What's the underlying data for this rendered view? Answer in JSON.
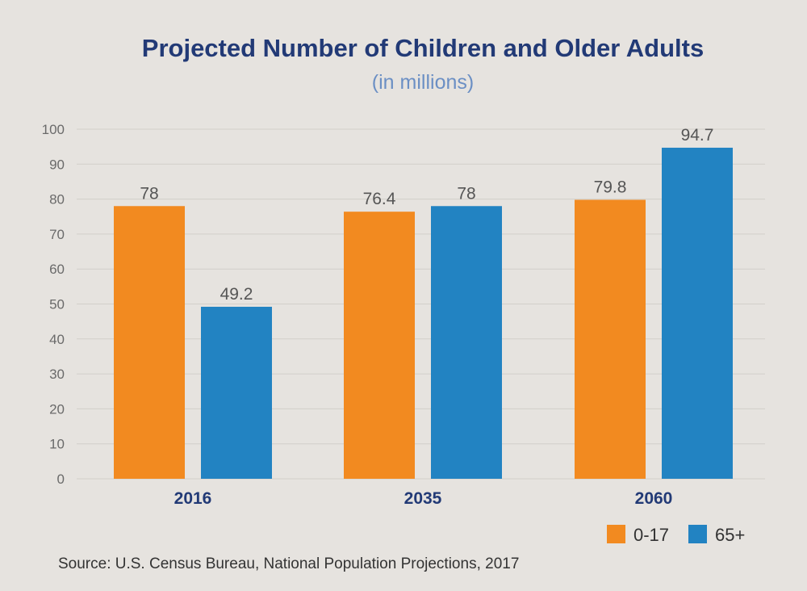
{
  "chart_data": {
    "type": "bar",
    "title": "Projected Number of Children and Older Adults",
    "subtitle": "(in millions)",
    "categories": [
      "2016",
      "2035",
      "2060"
    ],
    "series": [
      {
        "name": "0-17",
        "values": [
          78,
          76.4,
          79.8
        ],
        "labels": [
          "78",
          "76.4",
          "79.8"
        ],
        "color": "#f28a20"
      },
      {
        "name": "65+",
        "values": [
          49.2,
          78,
          94.7
        ],
        "labels": [
          "49.2",
          "78",
          "94.7"
        ],
        "color": "#2283c2"
      }
    ],
    "ylim": [
      0,
      100
    ],
    "yticks": [
      0,
      10,
      20,
      30,
      40,
      50,
      60,
      70,
      80,
      90,
      100
    ],
    "grid": true,
    "legend": "bottom-right",
    "source": "Source: U.S. Census Bureau, National Population Projections, 2017"
  },
  "colors": {
    "background": "#e6e3df",
    "title": "#223a76",
    "subtitle": "#6b8fc4",
    "grid": "#d2cfca",
    "tick": "#6a6a6a",
    "category": "#223a76",
    "data_label": "#555555",
    "source": "#333333"
  }
}
